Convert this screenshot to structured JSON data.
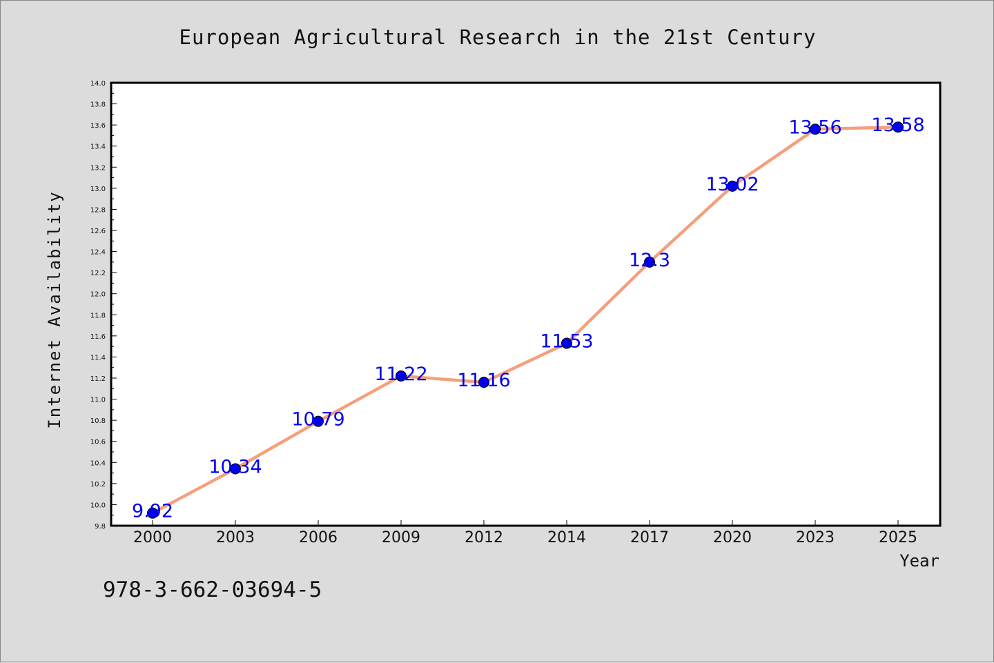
{
  "chart_data": {
    "type": "line",
    "title": "European Agricultural Research in the 21st Century",
    "xlabel": "Year",
    "ylabel": "Internet Availability",
    "categories": [
      "2000",
      "2003",
      "2006",
      "2009",
      "2012",
      "2014",
      "2017",
      "2020",
      "2023",
      "2025"
    ],
    "values": [
      9.92,
      10.34,
      10.79,
      11.22,
      11.16,
      11.53,
      12.3,
      13.02,
      13.56,
      13.58
    ],
    "value_labels": [
      "9.92",
      "10.34",
      "10.79",
      "11.22",
      "11.16",
      "11.53",
      "12.3",
      "13.02",
      "13.56",
      "13.58"
    ],
    "ylim": [
      9.8,
      14.0
    ],
    "yticks": [
      "9.8",
      "10.0",
      "10.2",
      "10.4",
      "10.6",
      "10.8",
      "11.0",
      "11.2",
      "11.4",
      "11.6",
      "11.8",
      "12.0",
      "12.2",
      "12.4",
      "12.6",
      "12.8",
      "13.0",
      "13.2",
      "13.4",
      "13.6",
      "13.8",
      "14.0"
    ],
    "grid": false,
    "legend": "none",
    "line_color": "#f4a07c",
    "marker_color": "#0000ee",
    "label_color": "#0000ee",
    "annotation": "978-3-662-03694-5"
  }
}
